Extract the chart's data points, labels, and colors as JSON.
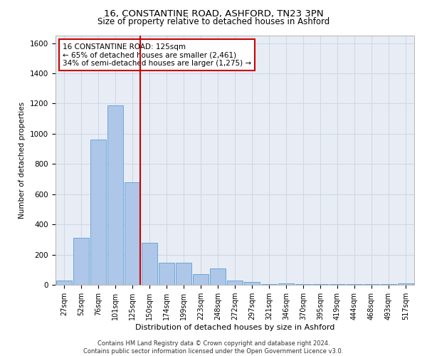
{
  "title_line1": "16, CONSTANTINE ROAD, ASHFORD, TN23 3PN",
  "title_line2": "Size of property relative to detached houses in Ashford",
  "xlabel": "Distribution of detached houses by size in Ashford",
  "ylabel": "Number of detached properties",
  "categories": [
    "27sqm",
    "52sqm",
    "76sqm",
    "101sqm",
    "125sqm",
    "150sqm",
    "174sqm",
    "199sqm",
    "223sqm",
    "248sqm",
    "272sqm",
    "297sqm",
    "321sqm",
    "346sqm",
    "370sqm",
    "395sqm",
    "419sqm",
    "444sqm",
    "468sqm",
    "493sqm",
    "517sqm"
  ],
  "values": [
    30,
    310,
    960,
    1190,
    680,
    280,
    145,
    145,
    70,
    110,
    30,
    20,
    5,
    10,
    5,
    5,
    3,
    3,
    3,
    3,
    10
  ],
  "bar_color": "#aec6e8",
  "bar_edge_color": "#5a9fd4",
  "highlight_index": 4,
  "highlight_line_color": "#cc0000",
  "annotation_text": "16 CONSTANTINE ROAD: 125sqm\n← 65% of detached houses are smaller (2,461)\n34% of semi-detached houses are larger (1,275) →",
  "annotation_box_color": "#cc0000",
  "ylim": [
    0,
    1650
  ],
  "yticks": [
    0,
    200,
    400,
    600,
    800,
    1000,
    1200,
    1400,
    1600
  ],
  "grid_color": "#d0d8e8",
  "background_color": "#e8edf5",
  "footer_line1": "Contains HM Land Registry data © Crown copyright and database right 2024.",
  "footer_line2": "Contains public sector information licensed under the Open Government Licence v3.0."
}
